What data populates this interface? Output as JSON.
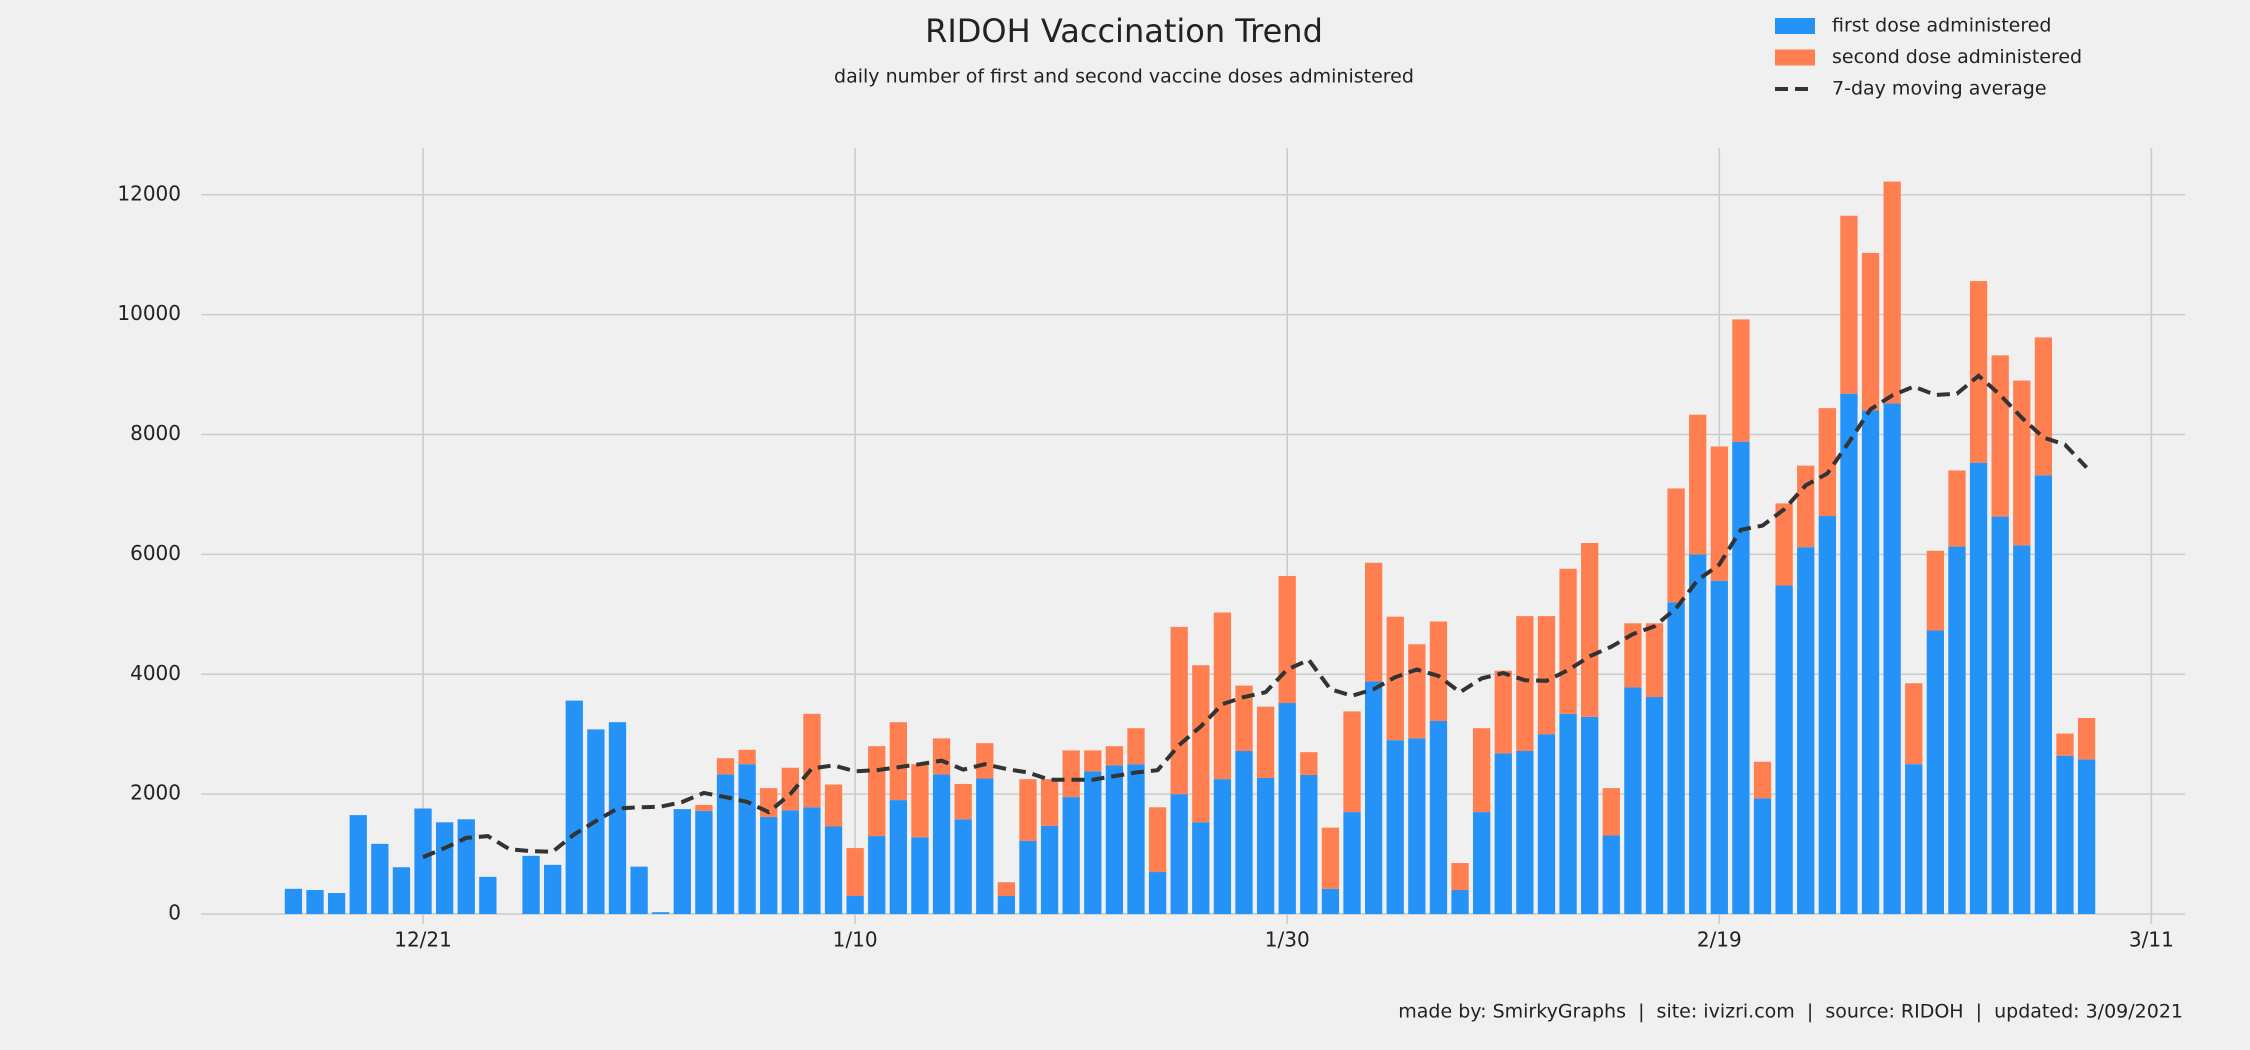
{
  "chart_data": {
    "type": "bar",
    "stacked": true,
    "title": "RIDOH Vaccination Trend",
    "subtitle": "daily number of first and second vaccine doses administered",
    "annotation": "made by: SmirkyGraphs  |  site: ivizri.com  |  source: RIDOH  |  updated: 3/09/2021",
    "x": [
      "12/15",
      "12/16",
      "12/17",
      "12/18",
      "12/19",
      "12/20",
      "12/21",
      "12/22",
      "12/23",
      "12/24",
      "12/25",
      "12/26",
      "12/27",
      "12/28",
      "12/29",
      "12/30",
      "12/31",
      "1/1",
      "1/2",
      "1/3",
      "1/4",
      "1/5",
      "1/6",
      "1/7",
      "1/8",
      "1/9",
      "1/10",
      "1/11",
      "1/12",
      "1/13",
      "1/14",
      "1/15",
      "1/16",
      "1/17",
      "1/18",
      "1/19",
      "1/20",
      "1/21",
      "1/22",
      "1/23",
      "1/24",
      "1/25",
      "1/26",
      "1/27",
      "1/28",
      "1/29",
      "1/30",
      "1/31",
      "2/1",
      "2/2",
      "2/3",
      "2/4",
      "2/5",
      "2/6",
      "2/7",
      "2/8",
      "2/9",
      "2/10",
      "2/11",
      "2/12",
      "2/13",
      "2/14",
      "2/15",
      "2/16",
      "2/17",
      "2/18",
      "2/19",
      "2/20",
      "2/21",
      "2/22",
      "2/23",
      "2/24",
      "2/25",
      "2/26",
      "2/27",
      "2/28",
      "3/1",
      "3/2",
      "3/3",
      "3/4",
      "3/5",
      "3/6",
      "3/7",
      "3/8"
    ],
    "series": [
      {
        "name": "first dose administered",
        "color": "#2492f7",
        "type": "bar",
        "values": [
          420,
          400,
          350,
          1650,
          1170,
          780,
          1760,
          1530,
          1580,
          620,
          0,
          970,
          820,
          3560,
          3080,
          3200,
          790,
          30,
          1750,
          1720,
          2330,
          2500,
          1620,
          1730,
          1780,
          1460,
          300,
          1300,
          1900,
          1280,
          2330,
          1580,
          2260,
          300,
          1220,
          1470,
          1950,
          2380,
          2480,
          2500,
          700,
          2000,
          1530,
          2250,
          2720,
          2270,
          3520,
          2320,
          420,
          1700,
          3880,
          2900,
          2930,
          3220,
          400,
          1700,
          2680,
          2720,
          3000,
          3340,
          3290,
          1310,
          3780,
          3620,
          5200,
          6000,
          5560,
          7880,
          1930,
          5480,
          6120,
          6640,
          8680,
          8400,
          8520,
          2500,
          4730,
          6130,
          7530,
          6630,
          6150,
          7320,
          2640,
          2580
        ]
      },
      {
        "name": "second dose administered",
        "color": "#ff7f50",
        "type": "bar",
        "values": [
          0,
          0,
          0,
          0,
          0,
          0,
          0,
          0,
          0,
          0,
          0,
          0,
          0,
          0,
          0,
          0,
          0,
          0,
          0,
          100,
          270,
          240,
          480,
          710,
          1560,
          700,
          800,
          1500,
          1300,
          1220,
          600,
          590,
          590,
          230,
          1030,
          780,
          780,
          350,
          320,
          600,
          1080,
          2790,
          2620,
          2780,
          1090,
          1190,
          2120,
          380,
          1020,
          1680,
          1980,
          2060,
          1570,
          1660,
          450,
          1400,
          1380,
          2250,
          1970,
          2420,
          2900,
          790,
          1070,
          1230,
          1900,
          2330,
          2240,
          2040,
          610,
          1370,
          1360,
          1800,
          2970,
          2630,
          3700,
          1350,
          1330,
          1270,
          3030,
          2690,
          2750,
          2300,
          370,
          690
        ]
      },
      {
        "name": "7-day moving average",
        "color": "#333333",
        "type": "line",
        "values": [
          null,
          null,
          null,
          null,
          null,
          null,
          950,
          1100,
          1270,
          1300,
          1080,
          1050,
          1040,
          1330,
          1550,
          1760,
          1780,
          1790,
          1870,
          2020,
          1950,
          1870,
          1700,
          2000,
          2430,
          2480,
          2380,
          2400,
          2450,
          2500,
          2560,
          2410,
          2500,
          2420,
          2360,
          2240,
          2240,
          2240,
          2300,
          2360,
          2400,
          2820,
          3130,
          3500,
          3620,
          3700,
          4080,
          4240,
          3750,
          3640,
          3750,
          3950,
          4080,
          3970,
          3700,
          3930,
          4020,
          3900,
          3890,
          4070,
          4300,
          4460,
          4670,
          4800,
          5100,
          5570,
          5830,
          6410,
          6480,
          6750,
          7150,
          7350,
          7870,
          8420,
          8650,
          8800,
          8660,
          8680,
          8980,
          8660,
          8280,
          7950,
          7830,
          7450
        ]
      }
    ],
    "xlim": [
      "12/11",
      "3/12"
    ],
    "xticks": [
      "12/21",
      "1/10",
      "1/30",
      "2/19",
      "3/11"
    ],
    "ylim": [
      0,
      12780
    ],
    "yticks": [
      0,
      2000,
      4000,
      6000,
      8000,
      10000,
      12000
    ],
    "grid": true,
    "legend": "upper right"
  }
}
